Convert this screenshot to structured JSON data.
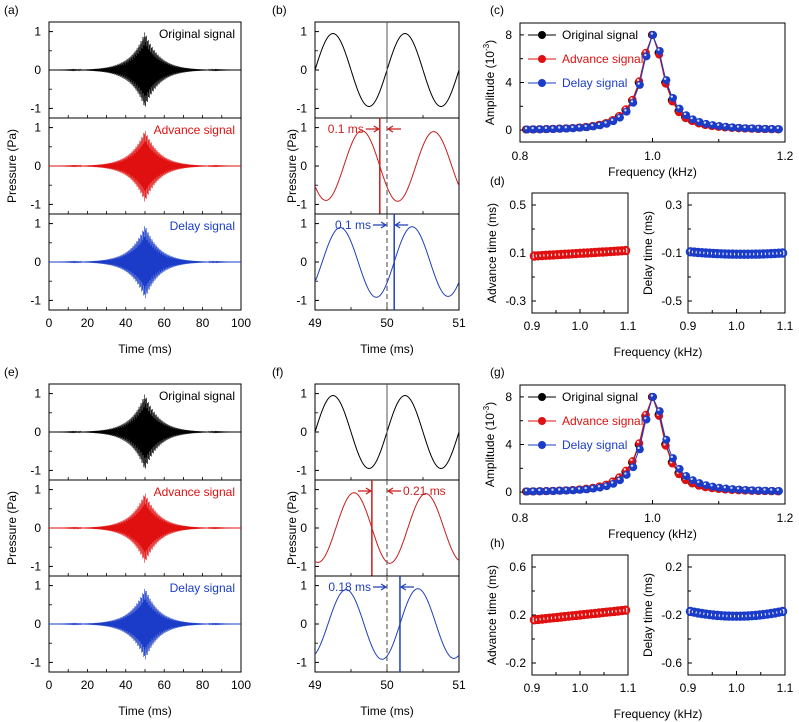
{
  "figure": {
    "colors": {
      "original": "#000000",
      "advance": "#e01010",
      "delay": "#1a3cc8",
      "advance_line": "#c81e1e",
      "delay_line": "#2040b8",
      "guide": "#555555"
    },
    "rows": [
      {
        "row_id": "top",
        "panel_labels": {
          "waveform": "(a)",
          "zoom": "(b)",
          "spectrum": "(c)",
          "time_shift": "(d)"
        },
        "annotations": {
          "advance": "0.1 ms",
          "delay": "0.1 ms"
        }
      },
      {
        "row_id": "bottom",
        "panel_labels": {
          "waveform": "(e)",
          "zoom": "(f)",
          "spectrum": "(g)",
          "time_shift": "(h)"
        },
        "annotations": {
          "advance": "0.21 ms",
          "delay": "0.18 ms"
        }
      }
    ]
  },
  "chart_data": [
    {
      "id": "a",
      "type": "line",
      "panel_label": "(a)",
      "xlabel": "Time (ms)",
      "ylabel": "Pressure (Pa)",
      "xlim": [
        0,
        100
      ],
      "xticks": [
        0,
        20,
        40,
        60,
        80,
        100
      ],
      "ylim": [
        -1.25,
        1.25
      ],
      "yticks": [
        -1,
        0,
        1
      ],
      "subplots": [
        {
          "name": "Original signal",
          "color": "#000000",
          "shift_ms": 0,
          "peak_ms": 50,
          "carrier_khz": 1.0,
          "peak_amplitude": 1.0
        },
        {
          "name": "Advance signal",
          "color": "#e01010",
          "shift_ms": -0.1,
          "peak_ms": 50,
          "carrier_khz": 1.0,
          "peak_amplitude": 0.95
        },
        {
          "name": "Delay signal",
          "color": "#1a3cc8",
          "shift_ms": 0.1,
          "peak_ms": 50,
          "carrier_khz": 1.0,
          "peak_amplitude": 0.97
        }
      ]
    },
    {
      "id": "b",
      "type": "line",
      "panel_label": "(b)",
      "xlabel": "Time (ms)",
      "ylabel": "Pressure (Pa)",
      "xlim": [
        49,
        51
      ],
      "xticks": [
        49,
        50,
        51
      ],
      "ylim": [
        -1.25,
        1.25
      ],
      "yticks": [
        -1,
        0,
        1
      ],
      "subplots": [
        {
          "name": "Original signal",
          "color": "#000000",
          "shift_ms": 0,
          "marker_ms": 50
        },
        {
          "name": "Advance signal",
          "color": "#c81e1e",
          "shift_ms": -0.1,
          "marker_ms": 49.9,
          "annotation": "0.1 ms"
        },
        {
          "name": "Delay signal",
          "color": "#2040b8",
          "shift_ms": 0.1,
          "marker_ms": 50.1,
          "annotation": "0.1 ms"
        }
      ]
    },
    {
      "id": "c",
      "type": "line",
      "panel_label": "(c)",
      "xlabel": "Frequency (kHz)",
      "ylabel": "Amplitude (10^-3)",
      "xlim": [
        0.8,
        1.2
      ],
      "xticks": [
        0.8,
        1.0,
        1.2
      ],
      "xtick_labels": [
        "0.8",
        "1.0",
        "1.2"
      ],
      "ylim": [
        -1,
        9
      ],
      "yticks": [
        0,
        4,
        8
      ],
      "legend": "top-left",
      "x": [
        0.81,
        0.82,
        0.83,
        0.84,
        0.85,
        0.86,
        0.87,
        0.88,
        0.89,
        0.9,
        0.91,
        0.92,
        0.93,
        0.94,
        0.95,
        0.96,
        0.97,
        0.98,
        0.99,
        1.0,
        1.01,
        1.02,
        1.03,
        1.04,
        1.05,
        1.06,
        1.07,
        1.08,
        1.09,
        1.1,
        1.11,
        1.12,
        1.13,
        1.14,
        1.15,
        1.16,
        1.17,
        1.18,
        1.19
      ],
      "series": [
        {
          "name": "Original signal",
          "color": "#000000",
          "values": [
            0.05,
            0.06,
            0.07,
            0.08,
            0.1,
            0.12,
            0.14,
            0.17,
            0.21,
            0.26,
            0.33,
            0.43,
            0.57,
            0.8,
            1.15,
            1.7,
            2.5,
            4.0,
            6.4,
            8.0,
            6.5,
            4.0,
            2.5,
            1.6,
            1.1,
            0.8,
            0.6,
            0.45,
            0.36,
            0.29,
            0.24,
            0.2,
            0.17,
            0.14,
            0.12,
            0.1,
            0.09,
            0.08,
            0.07
          ]
        },
        {
          "name": "Advance signal",
          "color": "#e01010",
          "values": [
            0.05,
            0.06,
            0.07,
            0.08,
            0.1,
            0.12,
            0.14,
            0.17,
            0.22,
            0.27,
            0.35,
            0.45,
            0.6,
            0.85,
            1.2,
            1.75,
            2.55,
            4.1,
            6.5,
            8.0,
            6.35,
            3.9,
            2.4,
            1.5,
            1.0,
            0.75,
            0.55,
            0.42,
            0.33,
            0.27,
            0.22,
            0.18,
            0.15,
            0.13,
            0.11,
            0.09,
            0.08,
            0.07,
            0.06
          ]
        },
        {
          "name": "Delay signal",
          "color": "#1a3cc8",
          "values": [
            0.05,
            0.06,
            0.07,
            0.08,
            0.09,
            0.11,
            0.13,
            0.16,
            0.2,
            0.24,
            0.31,
            0.4,
            0.53,
            0.75,
            1.05,
            1.55,
            2.3,
            3.8,
            6.2,
            8.0,
            6.65,
            4.2,
            2.7,
            1.8,
            1.25,
            0.9,
            0.68,
            0.52,
            0.42,
            0.34,
            0.28,
            0.23,
            0.19,
            0.16,
            0.14,
            0.12,
            0.1,
            0.09,
            0.08
          ]
        }
      ]
    },
    {
      "id": "d",
      "type": "scatter",
      "panel_label": "(d)",
      "xlabel": "Frequency (kHz)",
      "subplots": [
        {
          "name": "Advance time",
          "ylabel": "Advance time (ms)",
          "color": "#e01010",
          "xlim": [
            0.9,
            1.1
          ],
          "xticks": [
            0.9,
            1.0,
            1.1
          ],
          "xtick_labels": [
            "0.9",
            "1.0",
            "1.1"
          ],
          "ylim": [
            -0.4,
            0.6
          ],
          "yticks": [
            -0.3,
            0.1,
            0.5
          ],
          "x_range": [
            0.905,
            1.095
          ],
          "n_points": 25,
          "y_start": 0.075,
          "y_end": 0.12,
          "y_mid": 0.097
        },
        {
          "name": "Delay time",
          "ylabel": "Delay time (ms)",
          "color": "#1a3cc8",
          "xlim": [
            0.9,
            1.1
          ],
          "xticks": [
            0.9,
            1.0,
            1.1
          ],
          "xtick_labels": [
            "0.9",
            "1.0",
            "1.1"
          ],
          "ylim": [
            -0.6,
            0.4
          ],
          "yticks": [
            -0.5,
            -0.1,
            0.3
          ],
          "x_range": [
            0.905,
            1.095
          ],
          "n_points": 25,
          "y_start": -0.09,
          "y_end": -0.1,
          "y_mid": -0.11
        }
      ]
    },
    {
      "id": "e",
      "type": "line",
      "panel_label": "(e)",
      "xlabel": "Time (ms)",
      "ylabel": "Pressure (Pa)",
      "xlim": [
        0,
        100
      ],
      "xticks": [
        0,
        20,
        40,
        60,
        80,
        100
      ],
      "ylim": [
        -1.25,
        1.25
      ],
      "yticks": [
        -1,
        0,
        1
      ],
      "subplots": [
        {
          "name": "Original signal",
          "color": "#000000",
          "shift_ms": 0,
          "peak_ms": 50,
          "carrier_khz": 1.0,
          "peak_amplitude": 1.0
        },
        {
          "name": "Advance signal",
          "color": "#e01010",
          "shift_ms": -0.21,
          "peak_ms": 50,
          "carrier_khz": 1.0,
          "peak_amplitude": 0.93
        },
        {
          "name": "Delay signal",
          "color": "#1a3cc8",
          "shift_ms": 0.18,
          "peak_ms": 50,
          "carrier_khz": 1.0,
          "peak_amplitude": 0.95
        }
      ]
    },
    {
      "id": "f",
      "type": "line",
      "panel_label": "(f)",
      "xlabel": "Time (ms)",
      "ylabel": "Pressure (Pa)",
      "xlim": [
        49,
        51
      ],
      "xticks": [
        49,
        50,
        51
      ],
      "ylim": [
        -1.25,
        1.25
      ],
      "yticks": [
        -1,
        0,
        1
      ],
      "subplots": [
        {
          "name": "Original signal",
          "color": "#000000",
          "shift_ms": 0,
          "marker_ms": 50
        },
        {
          "name": "Advance signal",
          "color": "#c81e1e",
          "shift_ms": -0.21,
          "marker_ms": 49.79,
          "annotation": "0.21 ms"
        },
        {
          "name": "Delay signal",
          "color": "#2040b8",
          "shift_ms": 0.18,
          "marker_ms": 50.18,
          "annotation": "0.18 ms"
        }
      ]
    },
    {
      "id": "g",
      "type": "line",
      "panel_label": "(g)",
      "xlabel": "Frequency (kHz)",
      "ylabel": "Amplitude (10^-3)",
      "xlim": [
        0.8,
        1.2
      ],
      "xticks": [
        0.8,
        1.0,
        1.2
      ],
      "xtick_labels": [
        "0.8",
        "1.0",
        "1.2"
      ],
      "ylim": [
        -1,
        9
      ],
      "yticks": [
        0,
        4,
        8
      ],
      "legend": "top-left",
      "x": [
        0.81,
        0.82,
        0.83,
        0.84,
        0.85,
        0.86,
        0.87,
        0.88,
        0.89,
        0.9,
        0.91,
        0.92,
        0.93,
        0.94,
        0.95,
        0.96,
        0.97,
        0.98,
        0.99,
        1.0,
        1.01,
        1.02,
        1.03,
        1.04,
        1.05,
        1.06,
        1.07,
        1.08,
        1.09,
        1.1,
        1.11,
        1.12,
        1.13,
        1.14,
        1.15,
        1.16,
        1.17,
        1.18,
        1.19
      ],
      "series": [
        {
          "name": "Original signal",
          "color": "#000000",
          "values": [
            0.05,
            0.06,
            0.07,
            0.08,
            0.1,
            0.12,
            0.14,
            0.17,
            0.21,
            0.26,
            0.33,
            0.43,
            0.57,
            0.8,
            1.15,
            1.7,
            2.5,
            4.0,
            6.4,
            8.0,
            6.5,
            4.0,
            2.5,
            1.6,
            1.1,
            0.8,
            0.6,
            0.45,
            0.36,
            0.29,
            0.24,
            0.2,
            0.17,
            0.14,
            0.12,
            0.1,
            0.09,
            0.08,
            0.07
          ]
        },
        {
          "name": "Advance signal",
          "color": "#e01010",
          "values": [
            0.05,
            0.06,
            0.07,
            0.08,
            0.1,
            0.12,
            0.15,
            0.18,
            0.23,
            0.29,
            0.37,
            0.48,
            0.63,
            0.9,
            1.25,
            1.8,
            2.6,
            4.1,
            6.5,
            8.0,
            6.4,
            3.9,
            2.4,
            1.5,
            1.0,
            0.72,
            0.53,
            0.4,
            0.32,
            0.26,
            0.21,
            0.17,
            0.14,
            0.12,
            0.1,
            0.09,
            0.08,
            0.07,
            0.06
          ]
        },
        {
          "name": "Delay signal",
          "color": "#1a3cc8",
          "values": [
            0.05,
            0.06,
            0.07,
            0.08,
            0.09,
            0.11,
            0.13,
            0.15,
            0.19,
            0.23,
            0.3,
            0.38,
            0.5,
            0.7,
            1.0,
            1.45,
            2.1,
            3.6,
            6.1,
            8.0,
            6.8,
            4.4,
            2.85,
            1.95,
            1.35,
            1.0,
            0.75,
            0.58,
            0.46,
            0.37,
            0.3,
            0.25,
            0.21,
            0.18,
            0.15,
            0.13,
            0.11,
            0.1,
            0.09
          ]
        }
      ]
    },
    {
      "id": "h",
      "type": "scatter",
      "panel_label": "(h)",
      "xlabel": "Frequency (kHz)",
      "subplots": [
        {
          "name": "Advance time",
          "ylabel": "Advance time (ms)",
          "color": "#e01010",
          "xlim": [
            0.9,
            1.1
          ],
          "xticks": [
            0.9,
            1.0,
            1.1
          ],
          "xtick_labels": [
            "0.9",
            "1.0",
            "1.1"
          ],
          "ylim": [
            -0.3,
            0.7
          ],
          "yticks": [
            -0.2,
            0.2,
            0.6
          ],
          "x_range": [
            0.905,
            1.095
          ],
          "n_points": 25,
          "y_start": 0.16,
          "y_end": 0.24,
          "y_mid": 0.2
        },
        {
          "name": "Delay time",
          "ylabel": "Delay time (ms)",
          "color": "#1a3cc8",
          "xlim": [
            0.9,
            1.1
          ],
          "xticks": [
            0.9,
            1.0,
            1.1
          ],
          "xtick_labels": [
            "0.9",
            "1.0",
            "1.1"
          ],
          "ylim": [
            -0.7,
            0.3
          ],
          "yticks": [
            -0.6,
            -0.2,
            0.2
          ],
          "x_range": [
            0.905,
            1.095
          ],
          "n_points": 25,
          "y_start": -0.17,
          "y_end": -0.17,
          "y_mid": -0.21
        }
      ]
    }
  ]
}
